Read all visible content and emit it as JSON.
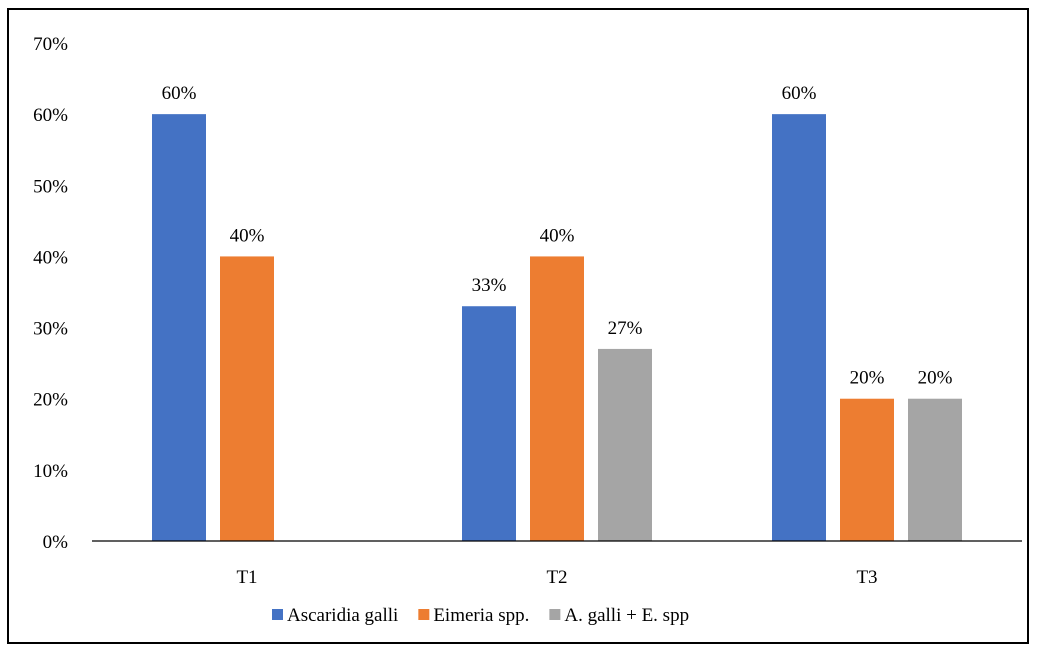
{
  "chart_data": {
    "type": "bar",
    "title": "",
    "xlabel": "",
    "ylabel": "",
    "categories": [
      "T1",
      "T2",
      "T3"
    ],
    "series": [
      {
        "name": "Ascaridia galli",
        "color": "#4472C4",
        "values": [
          60,
          33,
          60
        ],
        "labels": [
          "60%",
          "33%",
          "60%"
        ]
      },
      {
        "name": "Eimeria spp.",
        "color": "#ED7D31",
        "values": [
          40,
          40,
          20
        ],
        "labels": [
          "40%",
          "40%",
          "20%"
        ]
      },
      {
        "name": "A. galli + E. spp",
        "color": "#A5A5A5",
        "values": [
          0,
          27,
          20
        ],
        "labels": [
          "",
          "27%",
          "20%"
        ]
      }
    ],
    "ylim": [
      0,
      70
    ],
    "yticks": [
      0,
      10,
      20,
      30,
      40,
      50,
      60,
      70
    ],
    "ytick_labels": [
      "0%",
      "10%",
      "20%",
      "30%",
      "40%",
      "50%",
      "60%",
      "70%"
    ],
    "grid": false,
    "legend_position": "bottom"
  }
}
